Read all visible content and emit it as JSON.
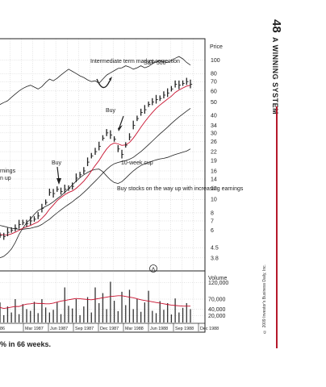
{
  "page": {
    "number": "48",
    "running_head": "A WINNING SYSTEM",
    "copyright": "© 2009 Investor's Business Daily, Inc.",
    "caption": "% in 66 weeks."
  },
  "chart_data": {
    "type": "line",
    "subtype": "weekly price chart with volume bars",
    "x_ticks": [
      "86",
      "Mar 1987",
      "Jun 1987",
      "Sep 1987",
      "Dec 1987",
      "Mar 1988",
      "Jun 1988",
      "Sep 1988",
      "Dec 1988"
    ],
    "price_axis": {
      "title": "Price",
      "scale": "log",
      "ticks": [
        100,
        80,
        70,
        60,
        50,
        40,
        34,
        30,
        26,
        22,
        19,
        16,
        14,
        12,
        10,
        8,
        7,
        6,
        4.5,
        3.8
      ],
      "ylim": [
        3.5,
        115
      ]
    },
    "volume_axis": {
      "title": "Volume",
      "ticks": [
        "120,000",
        "70,000",
        "40,000",
        "20,000"
      ]
    },
    "annotations": [
      {
        "text": "Intermediate term market correction"
      },
      {
        "text": "S&P 500"
      },
      {
        "text": "Buy"
      },
      {
        "text": "Buy"
      },
      {
        "text": "10-week cup"
      },
      {
        "text": "Buy stocks on the way up with increasing earnings"
      },
      {
        "text": "rnings"
      },
      {
        "text": "n up"
      }
    ],
    "marker_label": "A",
    "series": [
      {
        "name": "price",
        "values": [
          5.5,
          5.4,
          5.8,
          6.0,
          6.2,
          6.6,
          6.8,
          6.7,
          7.0,
          7.2,
          7.6,
          8.6,
          9.5,
          11.2,
          11.0,
          11.8,
          11.4,
          11.8,
          12.0,
          12.4,
          14.2,
          15.0,
          16.0,
          18.5,
          20.5,
          22.0,
          24.0,
          27.5,
          30.0,
          29.0,
          27.0,
          23.0,
          21.0,
          24.5,
          28.0,
          34.0,
          38.0,
          42.0,
          44.0,
          48.0,
          50.0,
          52.0,
          53.0,
          56.0,
          58.0,
          62.0,
          67.0,
          66.0,
          68.0,
          70.0,
          67.0
        ]
      },
      {
        "name": "moving average",
        "values": [
          5.6,
          5.55,
          5.55,
          5.65,
          5.8,
          6.0,
          6.2,
          6.35,
          6.5,
          6.7,
          6.9,
          7.3,
          7.8,
          8.5,
          9.1,
          9.8,
          10.3,
          10.8,
          11.2,
          11.5,
          12.0,
          12.7,
          13.5,
          14.6,
          16.0,
          17.5,
          19.0,
          21.0,
          23.0,
          24.6,
          25.4,
          25.0,
          24.4,
          24.6,
          25.6,
          27.5,
          30.0,
          33.0,
          36.0,
          39.0,
          42.0,
          45.0,
          47.5,
          50.0,
          52.5,
          55.0,
          58.5,
          61.0,
          63.0,
          65.0,
          66.0
        ]
      },
      {
        "name": "long moving average",
        "values": [
          6.5,
          6.4,
          6.3,
          6.2,
          6.15,
          6.1,
          6.1,
          6.15,
          6.2,
          6.3,
          6.4,
          6.6,
          6.9,
          7.2,
          7.6,
          8.0,
          8.4,
          8.8,
          9.2,
          9.6,
          10.1,
          10.6,
          11.2,
          11.9,
          12.7,
          13.5,
          14.4,
          15.4,
          16.4,
          17.3,
          18.0,
          18.4,
          18.7,
          19.0,
          19.4,
          20.0,
          21.0,
          22.0,
          23.3,
          24.7,
          26.2,
          27.8,
          29.5,
          31.2,
          33.0,
          35.0,
          37.0,
          39.0,
          41.0,
          43.0,
          45.0
        ]
      },
      {
        "name": "relative strength",
        "values": [
          3.8,
          3.9,
          4.1,
          4.4,
          4.9,
          5.6,
          6.2,
          6.8,
          7.2,
          7.8,
          8.3,
          8.6,
          8.9,
          9.2,
          9.6,
          10.1,
          10.6,
          11.2,
          11.9,
          12.7,
          13.5,
          14.3,
          15.0,
          15.6,
          16.1,
          16.4,
          16.5,
          15.8,
          14.7,
          13.8,
          13.2,
          13.0,
          13.4,
          14.2,
          15.1,
          16.0,
          16.8,
          17.5,
          18.0,
          18.4,
          18.8,
          19.2,
          19.5,
          19.7,
          20.0,
          20.5,
          21.0,
          21.4,
          21.8,
          22.2,
          23.0
        ]
      },
      {
        "name": "S&P 500",
        "values": [
          48.0,
          49.5,
          51.0,
          54.0,
          57.0,
          60.0,
          62.5,
          64.5,
          66.0,
          64.0,
          62.0,
          64.5,
          69.0,
          73.0,
          71.0,
          74.0,
          78.0,
          82.0,
          86.0,
          83.0,
          80.0,
          77.0,
          75.0,
          72.0,
          70.0,
          71.0,
          68.0,
          73.0,
          78.0,
          81.0,
          84.0,
          87.0,
          88.0,
          91.0,
          89.0,
          86.0,
          88.0,
          91.0,
          88.0,
          90.0,
          94.0,
          97.0,
          99.0,
          97.0,
          96.0,
          99.0,
          103.0,
          106.0,
          102.0,
          96.0,
          92.0
        ]
      },
      {
        "name": "volume",
        "values": [
          60000,
          22000,
          48000,
          30000,
          70000,
          25000,
          55000,
          40000,
          35000,
          62000,
          28000,
          70000,
          45000,
          30000,
          38000,
          60000,
          25000,
          105000,
          50000,
          42000,
          70000,
          22000,
          48000,
          76000,
          30000,
          105000,
          58000,
          88000,
          40000,
          122000,
          65000,
          34000,
          92000,
          52000,
          98000,
          40000,
          70000,
          32000,
          60000,
          95000,
          35000,
          28000,
          64000,
          38000,
          58000,
          24000,
          72000,
          30000,
          44000,
          58000,
          40000
        ]
      },
      {
        "name": "volume average",
        "values": [
          45000,
          42000,
          44000,
          46000,
          48000,
          48000,
          52000,
          55000,
          56000,
          58000,
          57000,
          57000,
          56000,
          56000,
          58000,
          61000,
          64000,
          66000,
          68000,
          70000,
          72000,
          71000,
          70000,
          69000,
          68000,
          70000,
          72000,
          74000,
          76000,
          78000,
          79000,
          80000,
          80000,
          78000,
          76000,
          74000,
          71000,
          68000,
          66000,
          64000,
          62000,
          60000,
          58000,
          56000,
          54000,
          52000,
          51000,
          50000,
          49000,
          49000,
          49000
        ]
      }
    ],
    "colors": {
      "price": "#222222",
      "moving_average": "#c8102e",
      "volume_average": "#c8102e",
      "grid": "#c9c9c9",
      "lines": "#222222"
    },
    "grid": true
  }
}
